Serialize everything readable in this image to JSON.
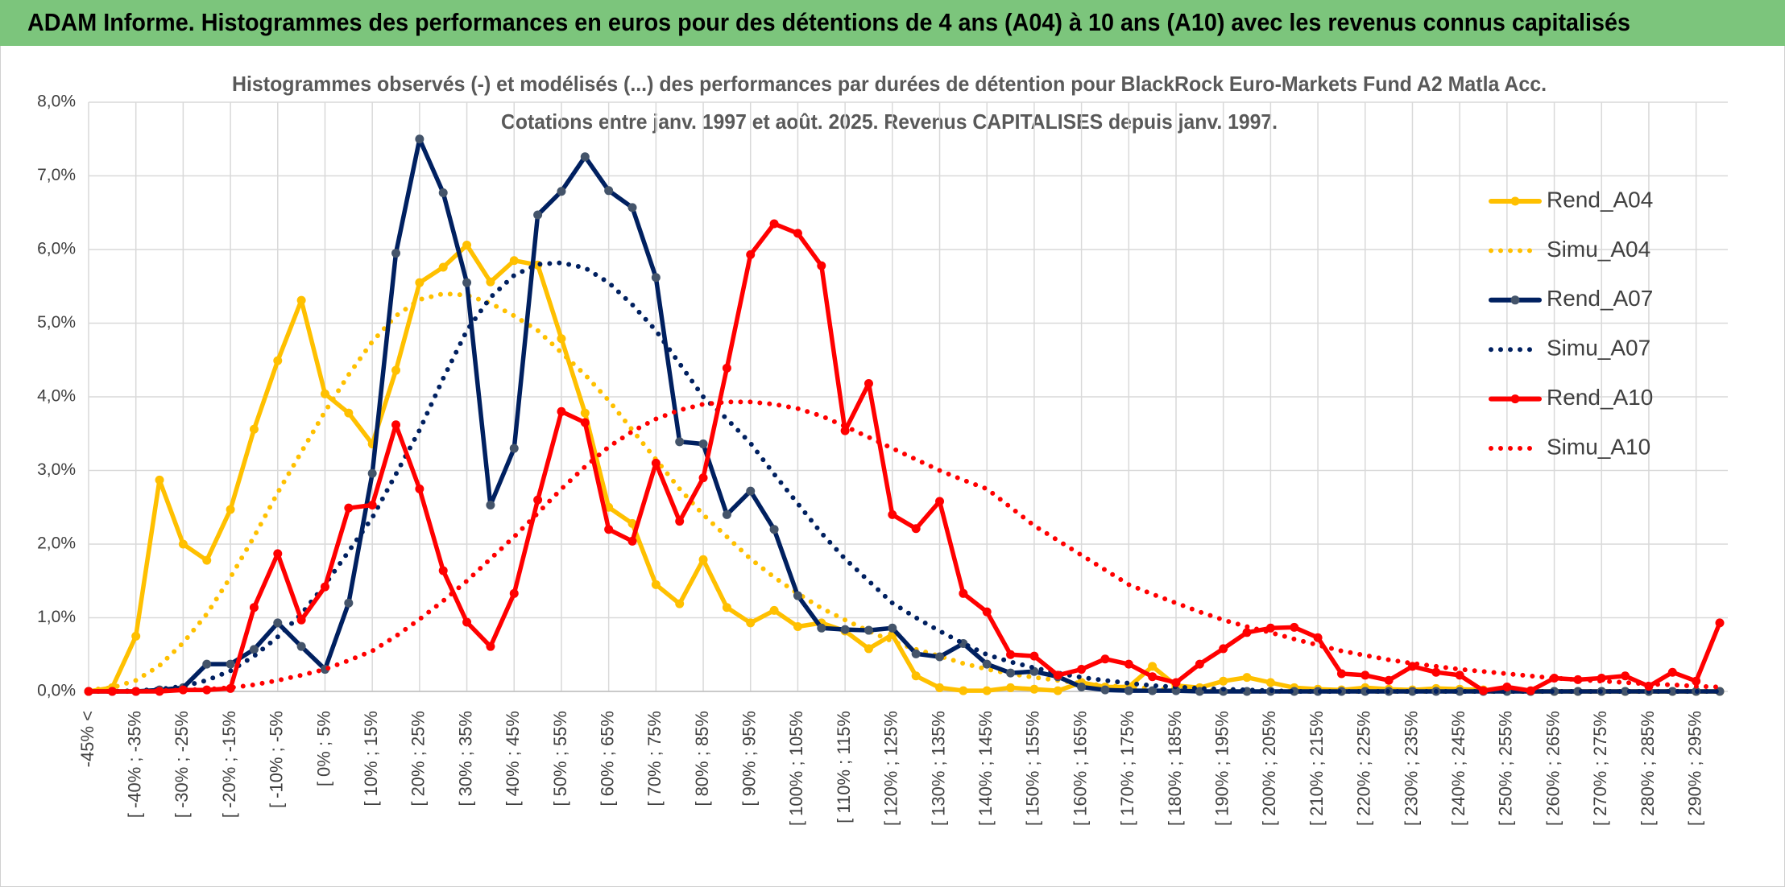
{
  "chart_data": {
    "type": "line",
    "title": "ADAM Informe. Histogrammes des performances en euros pour des détentions de 4 ans (A04) à 10 ans (A10) avec les revenus connus capitalisés",
    "subtitle": [
      "Histogrammes observés (-) et modélisés (...) des performances par durées de détention pour BlackRock Euro-Markets Fund A2 Matla Acc.",
      "Cotations entre janv. 1997 et août. 2025. Revenus CAPITALISES depuis janv. 1997."
    ],
    "categories": [
      "-45% <",
      null,
      "[ -40% ; -35%",
      null,
      "[ -30% ; -25%",
      null,
      "[ -20% ; -15%",
      null,
      "[ -10% ; -5%",
      null,
      "[ 0% ; 5%",
      null,
      "[ 10% ; 15%",
      null,
      "[ 20% ; 25%",
      null,
      "[ 30% ; 35%",
      null,
      "[ 40% ; 45%",
      null,
      "[ 50% ; 55%",
      null,
      "[ 60% ; 65%",
      null,
      "[ 70% ; 75%",
      null,
      "[ 80% ; 85%",
      null,
      "[ 90% ; 95%",
      null,
      "[ 100% ; 105%",
      null,
      "[ 110% ; 115%",
      null,
      "[ 120% ; 125%",
      null,
      "[ 130% ; 135%",
      null,
      "[ 140% ; 145%",
      null,
      "[ 150% ; 155%",
      null,
      "[ 160% ; 165%",
      null,
      "[ 170% ; 175%",
      null,
      "[ 180% ; 185%",
      null,
      "[ 190% ; 195%",
      null,
      "[ 200% ; 205%",
      null,
      "[ 210% ; 215%",
      null,
      "[ 220% ; 225%",
      null,
      "[ 230% ; 235%",
      null,
      "[ 240% ; 245%",
      null,
      "[ 250% ; 255%",
      null,
      "[ 260% ; 265%",
      null,
      "[ 270% ; 275%",
      null,
      "[ 280% ; 285%",
      null,
      "[ 290% ; 295%",
      null
    ],
    "series": [
      {
        "name": "Rend_A04",
        "color": "#ffc000",
        "style": "solid",
        "marker_color": "#ffc000",
        "values": [
          0,
          0.05,
          0.75,
          2.87,
          2.0,
          1.78,
          2.47,
          3.56,
          4.49,
          5.31,
          4.04,
          3.78,
          3.36,
          4.36,
          5.55,
          5.76,
          6.06,
          5.56,
          5.85,
          5.79,
          4.79,
          3.78,
          2.5,
          2.28,
          1.45,
          1.19,
          1.79,
          1.14,
          0.93,
          1.1,
          0.88,
          0.93,
          0.82,
          0.58,
          0.77,
          0.21,
          0.05,
          0.01,
          0.01,
          0.05,
          0.03,
          0.01,
          0.12,
          0.06,
          0.06,
          0.34,
          0.08,
          0.05,
          0.14,
          0.19,
          0.12,
          0.05,
          0.03,
          0.02,
          0.05,
          0.03,
          0.02,
          0.04,
          0.03,
          0.02,
          0.01,
          0,
          0,
          0,
          0,
          0,
          0,
          0,
          0,
          0
        ]
      },
      {
        "name": "Simu_A04",
        "color": "#ffc000",
        "style": "dotted",
        "values": [
          0.02,
          0.05,
          0.15,
          0.35,
          0.66,
          1.05,
          1.55,
          2.1,
          2.7,
          3.25,
          3.8,
          4.3,
          4.75,
          5.1,
          5.32,
          5.4,
          5.38,
          5.27,
          5.1,
          4.9,
          4.6,
          4.3,
          3.95,
          3.55,
          3.15,
          2.75,
          2.4,
          2.1,
          1.8,
          1.55,
          1.33,
          1.13,
          0.97,
          0.82,
          0.68,
          0.57,
          0.48,
          0.38,
          0.3,
          0.24,
          0.19,
          0.15,
          0.11,
          0.08,
          0.06,
          0.04,
          0.03,
          0.02,
          0.01,
          0,
          0,
          0,
          0,
          0,
          0,
          0,
          0,
          0,
          0,
          0,
          0,
          0,
          0,
          0,
          0,
          0,
          0,
          0,
          0,
          0
        ]
      },
      {
        "name": "Rend_A07",
        "color": "#002060",
        "style": "solid",
        "marker_color": "#44546a",
        "values": [
          0,
          0,
          0,
          0.02,
          0.05,
          0.37,
          0.37,
          0.57,
          0.93,
          0.61,
          0.3,
          1.2,
          2.96,
          5.95,
          7.5,
          6.77,
          5.55,
          2.53,
          3.3,
          6.47,
          6.79,
          7.26,
          6.8,
          6.57,
          5.62,
          3.39,
          3.36,
          2.4,
          2.72,
          2.2,
          1.3,
          0.86,
          0.84,
          0.83,
          0.86,
          0.51,
          0.47,
          0.65,
          0.37,
          0.25,
          0.27,
          0.2,
          0.06,
          0.02,
          0.01,
          0.01,
          0.01,
          0,
          0,
          0,
          0,
          0,
          0,
          0,
          0,
          0,
          0,
          0,
          0,
          0,
          0,
          0,
          0,
          0,
          0,
          0,
          0,
          0,
          0,
          0
        ]
      },
      {
        "name": "Simu_A07",
        "color": "#002060",
        "style": "dotted",
        "values": [
          0,
          0,
          0.01,
          0.03,
          0.07,
          0.15,
          0.28,
          0.48,
          0.74,
          1.05,
          1.45,
          1.9,
          2.36,
          2.95,
          3.55,
          4.25,
          4.9,
          5.35,
          5.65,
          5.8,
          5.82,
          5.75,
          5.55,
          5.25,
          4.9,
          4.45,
          4.0,
          3.7,
          3.37,
          2.95,
          2.55,
          2.15,
          1.8,
          1.5,
          1.2,
          1.0,
          0.82,
          0.65,
          0.5,
          0.4,
          0.32,
          0.25,
          0.19,
          0.15,
          0.11,
          0.08,
          0.06,
          0.04,
          0.03,
          0.02,
          0.01,
          0,
          0,
          0,
          0,
          0,
          0,
          0,
          0,
          0,
          0,
          0,
          0,
          0,
          0,
          0,
          0,
          0,
          0,
          0
        ]
      },
      {
        "name": "Rend_A10",
        "color": "#ff0000",
        "style": "solid",
        "marker_color": "#ff0000",
        "values": [
          0,
          0,
          0,
          0,
          0.02,
          0.02,
          0.04,
          1.14,
          1.87,
          0.97,
          1.42,
          2.49,
          2.53,
          3.62,
          2.75,
          1.64,
          0.94,
          0.61,
          1.33,
          2.6,
          3.8,
          3.65,
          2.2,
          2.04,
          3.1,
          2.31,
          2.9,
          4.39,
          5.93,
          6.35,
          6.22,
          5.78,
          3.54,
          4.18,
          2.4,
          2.21,
          2.58,
          1.33,
          1.08,
          0.5,
          0.48,
          0.22,
          0.3,
          0.44,
          0.37,
          0.2,
          0.12,
          0.37,
          0.58,
          0.8,
          0.86,
          0.87,
          0.73,
          0.24,
          0.22,
          0.15,
          0.34,
          0.26,
          0.22,
          0.01,
          0.06,
          0.01,
          0.18,
          0.16,
          0.18,
          0.21,
          0.07,
          0.26,
          0.14,
          0.93
        ]
      },
      {
        "name": "Simu_A10",
        "color": "#ff0000",
        "style": "dotted",
        "values": [
          0,
          0,
          0,
          0.01,
          0.02,
          0.03,
          0.05,
          0.09,
          0.15,
          0.22,
          0.3,
          0.42,
          0.55,
          0.75,
          0.98,
          1.23,
          1.5,
          1.8,
          2.1,
          2.42,
          2.75,
          3.05,
          3.32,
          3.53,
          3.7,
          3.82,
          3.9,
          3.93,
          3.93,
          3.9,
          3.84,
          3.74,
          3.6,
          3.45,
          3.3,
          3.15,
          3.0,
          2.87,
          2.75,
          2.5,
          2.25,
          2.05,
          1.85,
          1.65,
          1.45,
          1.32,
          1.2,
          1.08,
          0.97,
          0.88,
          0.8,
          0.71,
          0.63,
          0.55,
          0.49,
          0.43,
          0.38,
          0.34,
          0.3,
          0.27,
          0.24,
          0.21,
          0.18,
          0.16,
          0.14,
          0.12,
          0.1,
          0.09,
          0.07,
          0.06
        ]
      }
    ],
    "ylim": [
      0,
      8
    ],
    "yticks": [
      {
        "value": 0,
        "label": "0,0%"
      },
      {
        "value": 1,
        "label": "1,0%"
      },
      {
        "value": 2,
        "label": "2,0%"
      },
      {
        "value": 3,
        "label": "3,0%"
      },
      {
        "value": 4,
        "label": "4,0%"
      },
      {
        "value": 5,
        "label": "5,0%"
      },
      {
        "value": 6,
        "label": "6,0%"
      },
      {
        "value": 7,
        "label": "7,0%"
      },
      {
        "value": 8,
        "label": "8,0%"
      }
    ],
    "grid": true,
    "legend": "right"
  }
}
